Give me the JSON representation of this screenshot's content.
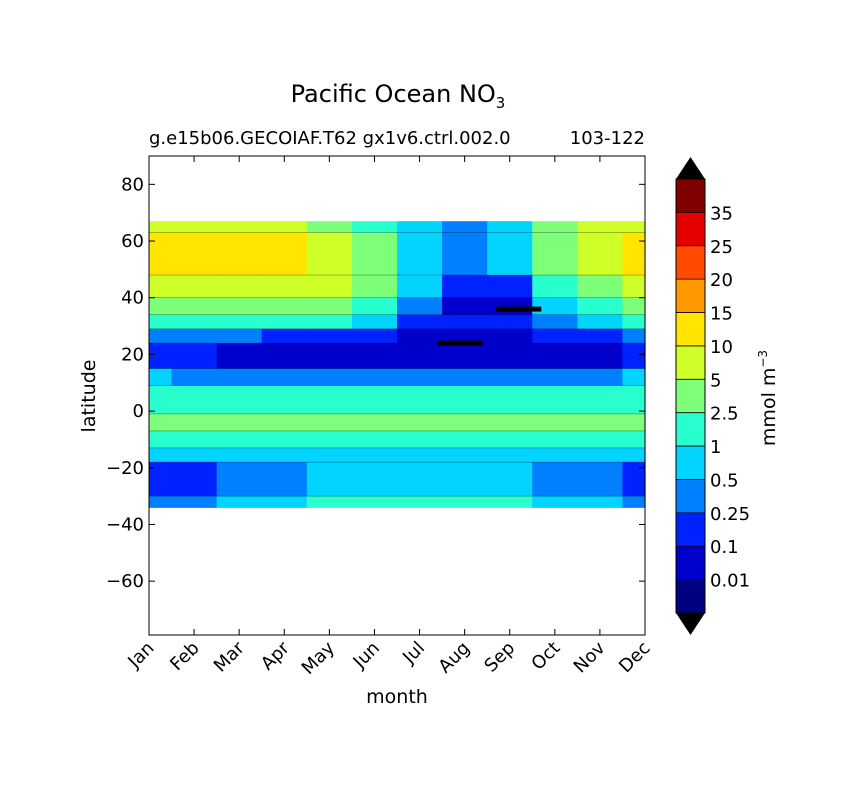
{
  "chart_data": {
    "type": "heatmap",
    "title_main": "Pacific Ocean NO",
    "title_sub": "3",
    "subtitle_left": "g.e15b06.GECOIAF.T62 gx1v6.ctrl.002.0",
    "subtitle_right": "103-122",
    "xlabel": "month",
    "ylabel": "latitude",
    "x_ticks": [
      "Jan",
      "Feb",
      "Mar",
      "Apr",
      "May",
      "Jun",
      "Jul",
      "Aug",
      "Sep",
      "Oct",
      "Nov",
      "Dec"
    ],
    "y_ticks": [
      80,
      60,
      40,
      20,
      0,
      -20,
      -40,
      -60
    ],
    "y_tick_labels": [
      "80",
      "60",
      "40",
      "20",
      "0",
      "−20",
      "−40",
      "−60"
    ],
    "ylim": [
      -79,
      90
    ],
    "data_lat_range": [
      -34,
      67
    ],
    "colorbar": {
      "label_main": "mmol m",
      "label_sup": "−3",
      "levels": [
        "0.01",
        "0.1",
        "0.25",
        "0.5",
        "1",
        "2.5",
        "5",
        "10",
        "15",
        "20",
        "25",
        "35"
      ],
      "colors": [
        "#000080",
        "#0000cd",
        "#0022ff",
        "#0080ff",
        "#00d4ff",
        "#29ffce",
        "#7dff7a",
        "#ceff29",
        "#ffe500",
        "#ff9900",
        "#ff4a00",
        "#e50000",
        "#800000"
      ],
      "extend": "both"
    },
    "bands": [
      {
        "lat_top": 67,
        "lat_bottom": 63,
        "values": [
          5,
          5,
          5,
          5,
          4,
          1,
          0.5,
          0.25,
          0.5,
          2.5,
          5,
          5
        ],
        "left_color": "#ceff29"
      },
      {
        "lat_top": 63,
        "lat_bottom": 48,
        "values": [
          10,
          10,
          10,
          10,
          5,
          2.5,
          0.5,
          0.25,
          0.5,
          2.5,
          5,
          10
        ]
      },
      {
        "lat_top": 48,
        "lat_bottom": 40,
        "values": [
          5,
          5,
          5,
          5,
          5,
          2.5,
          0.5,
          0.1,
          0.1,
          1,
          2.5,
          5
        ]
      },
      {
        "lat_top": 40,
        "lat_bottom": 34,
        "values": [
          2.5,
          2.5,
          2.5,
          2.5,
          2.5,
          1,
          0.25,
          0.01,
          0.01,
          0.5,
          1,
          2.5
        ]
      },
      {
        "lat_top": 34,
        "lat_bottom": 29,
        "values": [
          1,
          1,
          1,
          1,
          1,
          0.5,
          0.1,
          0.1,
          0.1,
          0.25,
          0.5,
          1
        ]
      },
      {
        "lat_top": 29,
        "lat_bottom": 24,
        "values": [
          0.25,
          0.25,
          0.25,
          0.1,
          0.1,
          0.1,
          0.01,
          0.01,
          0.01,
          0.1,
          0.1,
          0.25
        ]
      },
      {
        "lat_top": 24,
        "lat_bottom": 15,
        "values": [
          0.1,
          0.1,
          0.01,
          0.01,
          0.01,
          0.01,
          0.01,
          0.01,
          0.01,
          0.01,
          0.01,
          0.1
        ]
      },
      {
        "lat_top": 15,
        "lat_bottom": 9,
        "values": [
          0.5,
          0.25,
          0.25,
          0.25,
          0.25,
          0.25,
          0.25,
          0.25,
          0.25,
          0.25,
          0.25,
          0.5
        ]
      },
      {
        "lat_top": 9,
        "lat_bottom": -1,
        "values": [
          1,
          1,
          1,
          1,
          1,
          1,
          1,
          1,
          1,
          1,
          1,
          1
        ]
      },
      {
        "lat_top": -1,
        "lat_bottom": -7,
        "values": [
          2.5,
          2.5,
          2.5,
          2.5,
          2.5,
          2.5,
          2.5,
          2.5,
          2.5,
          2.5,
          2.5,
          2.5
        ]
      },
      {
        "lat_top": -7,
        "lat_bottom": -13,
        "values": [
          1,
          1,
          1,
          1,
          1,
          1,
          1,
          1,
          1,
          1,
          1,
          1
        ]
      },
      {
        "lat_top": -13,
        "lat_bottom": -18,
        "values": [
          0.5,
          0.5,
          0.5,
          0.5,
          0.5,
          0.5,
          0.5,
          0.5,
          0.5,
          0.5,
          0.5,
          0.5
        ]
      },
      {
        "lat_top": -18,
        "lat_bottom": -30,
        "values": [
          0.1,
          0.1,
          0.25,
          0.25,
          0.5,
          0.5,
          0.5,
          0.5,
          0.5,
          0.25,
          0.25,
          0.1
        ]
      },
      {
        "lat_top": -30,
        "lat_bottom": -34,
        "values": [
          0.25,
          0.25,
          0.5,
          0.5,
          1,
          1,
          1,
          1,
          1,
          0.5,
          0.5,
          0.25
        ]
      }
    ],
    "minima_marks": [
      {
        "month": 6.9,
        "lat": 24,
        "width": 1.0
      },
      {
        "month": 8.2,
        "lat": 36,
        "width": 1.0
      }
    ]
  }
}
